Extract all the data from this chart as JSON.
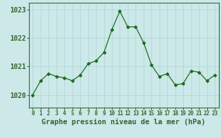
{
  "hours": [
    0,
    1,
    2,
    3,
    4,
    5,
    6,
    7,
    8,
    9,
    10,
    11,
    12,
    13,
    14,
    15,
    16,
    17,
    18,
    19,
    20,
    21,
    22,
    23
  ],
  "pressure": [
    1020.0,
    1020.5,
    1020.75,
    1020.65,
    1020.6,
    1020.5,
    1020.7,
    1021.1,
    1021.2,
    1021.5,
    1022.3,
    1022.95,
    1022.4,
    1022.4,
    1021.85,
    1021.05,
    1020.65,
    1020.75,
    1020.35,
    1020.4,
    1020.85,
    1020.8,
    1020.5,
    1020.7
  ],
  "line_color": "#1a6b1a",
  "marker": "D",
  "marker_size": 2.5,
  "bg_color": "#cce8e8",
  "grid_color_major": "#aad4d4",
  "grid_color_minor": "#bbdddd",
  "xlabel": "Graphe pression niveau de la mer (hPa)",
  "xlabel_fontsize": 7.5,
  "tick_fontsize": 7,
  "ytick_labels": [
    "1020",
    "1021",
    "1022",
    "1023"
  ],
  "ytick_values": [
    1020,
    1021,
    1022,
    1023
  ],
  "ylim": [
    1019.55,
    1023.25
  ],
  "xlim": [
    -0.5,
    23.5
  ],
  "axis_color": "#336633",
  "spine_color": "#336633"
}
